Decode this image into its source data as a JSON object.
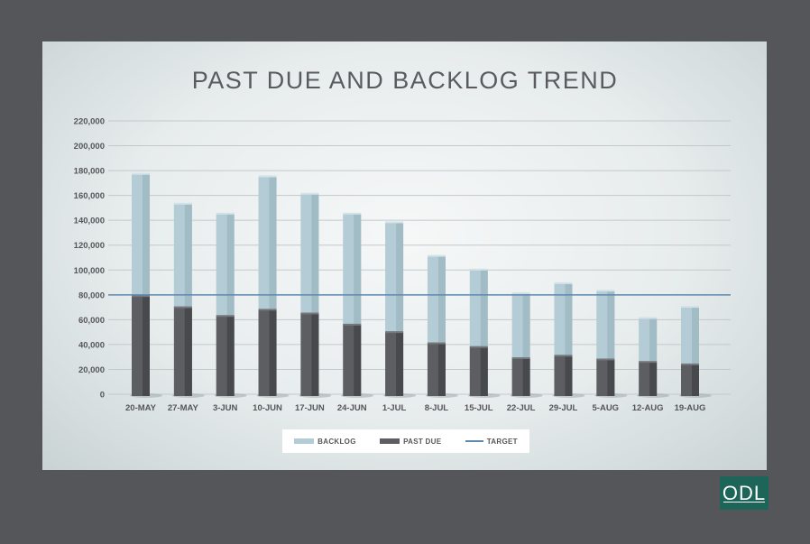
{
  "chart_data": {
    "type": "bar",
    "stacked": true,
    "title": "PAST DUE AND BACKLOG TREND",
    "categories": [
      "20-MAY",
      "27-MAY",
      "3-JUN",
      "10-JUN",
      "17-JUN",
      "24-JUN",
      "1-JUL",
      "8-JUL",
      "15-JUL",
      "22-JUL",
      "29-JUL",
      "5-AUG",
      "12-AUG",
      "19-AUG"
    ],
    "series": [
      {
        "name": "PAST DUE",
        "color": "#5d5e62",
        "values": [
          79000,
          70000,
          63000,
          68000,
          65000,
          56000,
          50000,
          41000,
          38000,
          29000,
          31000,
          28000,
          26000,
          24000
        ]
      },
      {
        "name": "BACKLOG",
        "color": "#b3ccd5",
        "values": [
          98000,
          83000,
          82000,
          107000,
          96000,
          89000,
          88000,
          70000,
          62000,
          52000,
          58000,
          55000,
          35000,
          46000
        ]
      }
    ],
    "target": {
      "name": "TARGET",
      "value": 80000,
      "color": "#5e89b0"
    },
    "ylim": [
      0,
      220000
    ],
    "yticks": [
      0,
      20000,
      40000,
      60000,
      80000,
      100000,
      120000,
      140000,
      160000,
      180000,
      200000,
      220000
    ],
    "ytick_labels": [
      "0",
      "20,000",
      "40,000",
      "60,000",
      "80,000",
      "100,000",
      "120,000",
      "140,000",
      "160,000",
      "180,000",
      "200,000",
      "220,000"
    ],
    "grid": true,
    "legend_position": "bottom"
  },
  "legend": {
    "backlog": "BACKLOG",
    "past_due": "PAST DUE",
    "target": "TARGET"
  },
  "logo": {
    "text": "ODL"
  }
}
